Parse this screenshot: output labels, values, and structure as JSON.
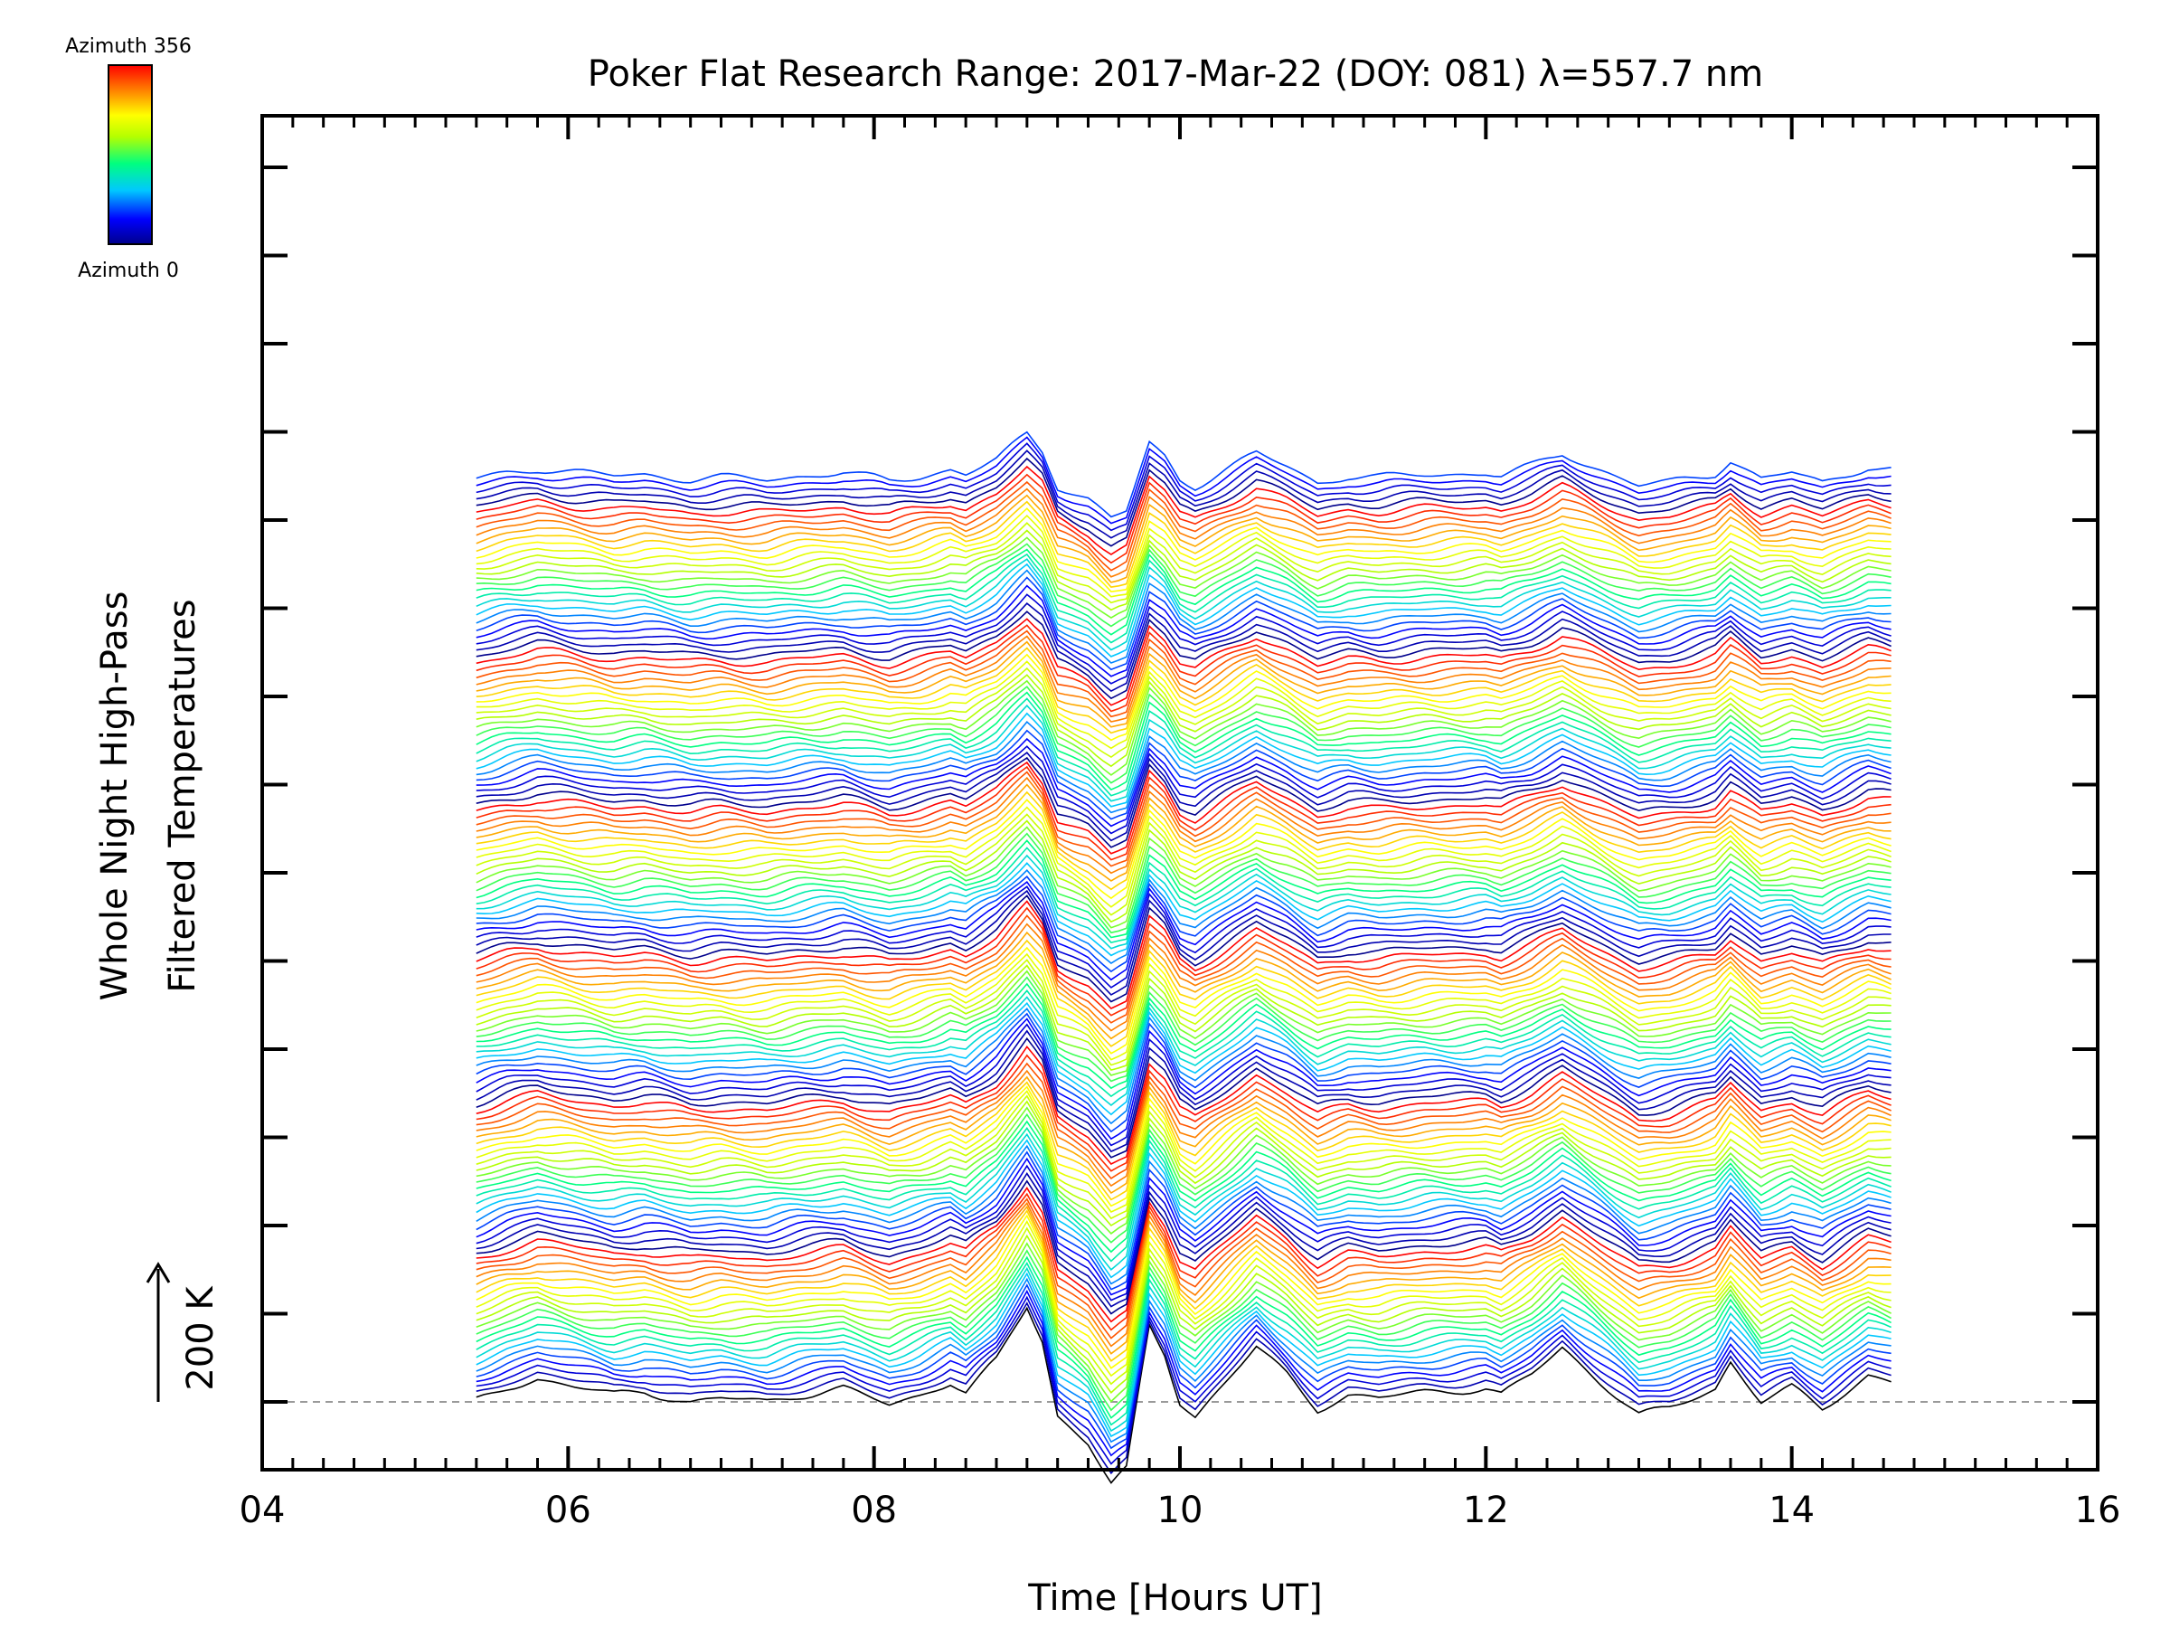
{
  "chart_data": {
    "type": "line",
    "title": "Poker Flat Research Range: 2017-Mar-22 (DOY: 081) λ=557.7 nm",
    "xlabel": "Time [Hours UT]",
    "ylabel_line1": "Whole Night High-Pass",
    "ylabel_line2": "Filtered Temperatures",
    "xlim": [
      4,
      16
    ],
    "x_ticks": [
      "04",
      "06",
      "08",
      "10",
      "12",
      "14",
      "16"
    ],
    "y_tick_count": 15,
    "x_data_range": [
      5.4,
      14.65
    ],
    "scale_bar_label": "200 K",
    "baseline_style": "dashed",
    "grid": false,
    "colorbar": {
      "top_label": "Azimuth 356",
      "bottom_label": "Azimuth 0",
      "colormap": [
        "#00008c",
        "#0000ff",
        "#00c8ff",
        "#00ff80",
        "#b4ff00",
        "#ffff00",
        "#ff8000",
        "#ff0000"
      ],
      "placement": "top-left"
    },
    "series_count": 137,
    "offset_between_series_K": 10,
    "azimuth_cycle_length": 22,
    "profile_points": [
      {
        "x": 5.4,
        "y": 0
      },
      {
        "x": 5.6,
        "y": 20
      },
      {
        "x": 5.8,
        "y": 35
      },
      {
        "x": 6.0,
        "y": 25
      },
      {
        "x": 6.3,
        "y": 10
      },
      {
        "x": 6.5,
        "y": 15
      },
      {
        "x": 6.8,
        "y": 0
      },
      {
        "x": 7.0,
        "y": 5
      },
      {
        "x": 7.3,
        "y": 0
      },
      {
        "x": 7.5,
        "y": 10
      },
      {
        "x": 7.8,
        "y": 20
      },
      {
        "x": 8.1,
        "y": -5
      },
      {
        "x": 8.3,
        "y": 10
      },
      {
        "x": 8.5,
        "y": 30
      },
      {
        "x": 8.6,
        "y": 15
      },
      {
        "x": 8.8,
        "y": 60
      },
      {
        "x": 9.0,
        "y": 140
      },
      {
        "x": 9.1,
        "y": 90
      },
      {
        "x": 9.2,
        "y": -20
      },
      {
        "x": 9.4,
        "y": -60
      },
      {
        "x": 9.55,
        "y": -120
      },
      {
        "x": 9.65,
        "y": -100
      },
      {
        "x": 9.8,
        "y": 110
      },
      {
        "x": 9.9,
        "y": 70
      },
      {
        "x": 10.0,
        "y": 0
      },
      {
        "x": 10.1,
        "y": -20
      },
      {
        "x": 10.3,
        "y": 30
      },
      {
        "x": 10.5,
        "y": 80
      },
      {
        "x": 10.7,
        "y": 40
      },
      {
        "x": 10.9,
        "y": -10
      },
      {
        "x": 11.1,
        "y": 10
      },
      {
        "x": 11.3,
        "y": 5
      },
      {
        "x": 11.6,
        "y": 15
      },
      {
        "x": 12.0,
        "y": 20
      },
      {
        "x": 12.1,
        "y": 10
      },
      {
        "x": 12.3,
        "y": 40
      },
      {
        "x": 12.5,
        "y": 80
      },
      {
        "x": 12.8,
        "y": 20
      },
      {
        "x": 13.0,
        "y": -20
      },
      {
        "x": 13.2,
        "y": -10
      },
      {
        "x": 13.5,
        "y": 20
      },
      {
        "x": 13.6,
        "y": 60
      },
      {
        "x": 13.8,
        "y": 0
      },
      {
        "x": 14.0,
        "y": 20
      },
      {
        "x": 14.2,
        "y": -10
      },
      {
        "x": 14.5,
        "y": 40
      },
      {
        "x": 14.65,
        "y": 30
      }
    ]
  }
}
